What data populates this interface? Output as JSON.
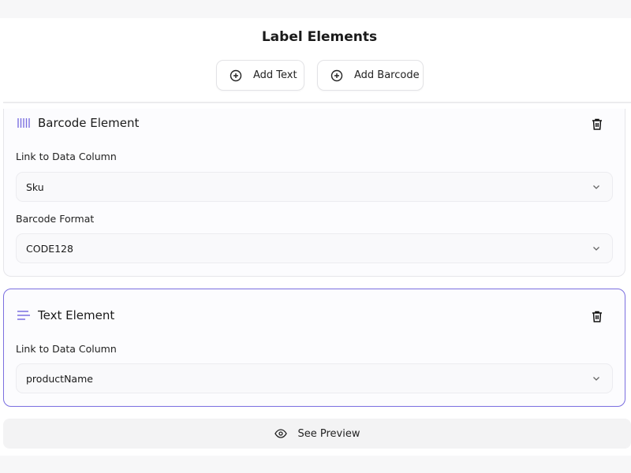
{
  "header": {
    "title": "Label Elements"
  },
  "toolbar": {
    "add_text": "Add Text",
    "add_barcode": "Add Barcode"
  },
  "accent": "#7b6fe0",
  "elements": [
    {
      "title": "Barcode Element",
      "icon": "barcode-icon",
      "fields": [
        {
          "label": "Link to Data Column",
          "value": "Sku"
        },
        {
          "label": "Barcode Format",
          "value": "CODE128"
        }
      ]
    },
    {
      "title": "Text Element",
      "icon": "text-align-icon",
      "selected": true,
      "fields": [
        {
          "label": "Link to Data Column",
          "value": "productName"
        }
      ]
    }
  ],
  "preview": {
    "label": "See Preview"
  }
}
